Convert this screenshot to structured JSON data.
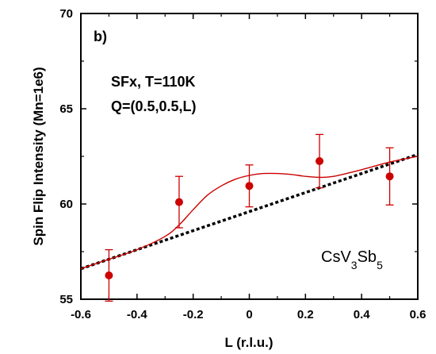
{
  "chart_data": {
    "type": "scatter",
    "panel_label": "b)",
    "annotations": [
      "SFx, T=110K",
      "Q=(0.5,0.5,L)"
    ],
    "compound": {
      "base1": "CsV",
      "sub1": "3",
      "base2": "Sb",
      "sub2": "5"
    },
    "xlabel": "L (r.l.u.)",
    "ylabel": "Spin Flip Intensity (Mn=1e6)",
    "xlim": [
      -0.6,
      0.6
    ],
    "ylim": [
      55,
      70
    ],
    "xticks": [
      -0.6,
      -0.4,
      -0.2,
      0,
      0.2,
      0.4,
      0.6
    ],
    "xtick_labels": [
      "-0.6",
      "-0.4",
      "-0.2",
      "0",
      "0.2",
      "0.4",
      "0.6"
    ],
    "yticks": [
      55,
      60,
      65,
      70
    ],
    "ytick_labels": [
      "55",
      "60",
      "65",
      "70"
    ],
    "grid": false,
    "series": [
      {
        "kind": "points",
        "color": "#cc0000",
        "points": [
          {
            "x": -0.5,
            "y": 56.25,
            "err": 1.35
          },
          {
            "x": -0.25,
            "y": 60.1,
            "err": 1.35
          },
          {
            "x": 0.0,
            "y": 60.95,
            "err": 1.1
          },
          {
            "x": 0.25,
            "y": 62.25,
            "err": 1.4
          },
          {
            "x": 0.5,
            "y": 61.45,
            "err": 1.5
          }
        ]
      },
      {
        "kind": "fit-line",
        "color": "#cc0000",
        "x": [
          -0.6,
          -0.5,
          -0.4,
          -0.3,
          -0.25,
          -0.2,
          -0.15,
          -0.1,
          -0.05,
          0.0,
          0.05,
          0.1,
          0.15,
          0.2,
          0.25,
          0.3,
          0.4,
          0.5,
          0.6
        ],
        "y": [
          56.6,
          57.1,
          57.6,
          58.3,
          58.9,
          59.7,
          60.45,
          60.95,
          61.3,
          61.5,
          61.6,
          61.6,
          61.55,
          61.45,
          61.4,
          61.45,
          61.8,
          62.2,
          62.5
        ]
      },
      {
        "kind": "baseline",
        "color": "#000000",
        "style": "dashed",
        "x": [
          -0.6,
          0.6
        ],
        "y": [
          56.6,
          62.6
        ]
      }
    ]
  }
}
